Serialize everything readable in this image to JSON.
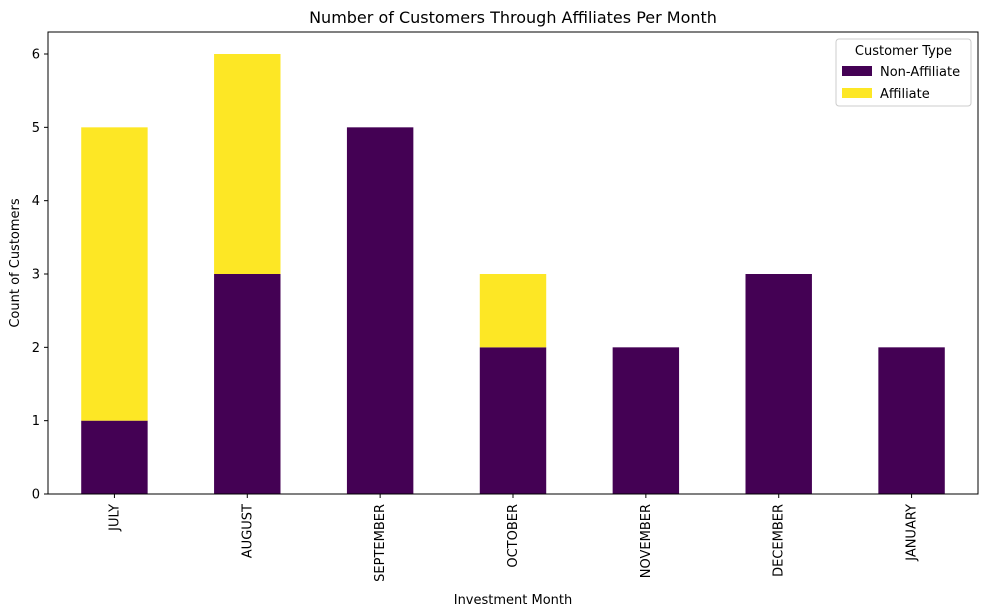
{
  "chart_data": {
    "type": "bar",
    "stacked": true,
    "title": "Number of Customers Through Affiliates Per Month",
    "xlabel": "Investment Month",
    "ylabel": "Count of Customers",
    "categories": [
      "JULY",
      "AUGUST",
      "SEPTEMBER",
      "OCTOBER",
      "NOVEMBER",
      "DECEMBER",
      "JANUARY"
    ],
    "series": [
      {
        "name": "Non-Affiliate",
        "color": "#440154",
        "values": [
          1,
          3,
          5,
          2,
          2,
          3,
          2
        ]
      },
      {
        "name": "Affiliate",
        "color": "#fde725",
        "values": [
          4,
          3,
          0,
          1,
          0,
          0,
          0
        ]
      }
    ],
    "ylim": [
      0,
      6.3
    ],
    "yticks": [
      0,
      1,
      2,
      3,
      4,
      5,
      6
    ],
    "grid": false,
    "legend": {
      "title": "Customer Type",
      "placement": "top-right"
    }
  }
}
